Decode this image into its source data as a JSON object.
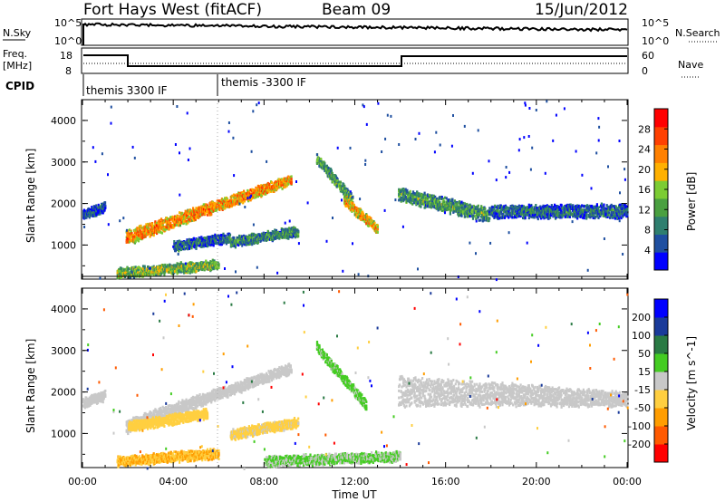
{
  "header": {
    "title": "Fort Hays West (fitACF)",
    "beam": "Beam 09",
    "date": "15/Jun/2012"
  },
  "strip_panels": {
    "nsky_label": "N.Sky",
    "nsearch_label": "N.Search",
    "noise_ticks": [
      "10^5",
      "10^0"
    ],
    "freq_label_line1": "Freq.",
    "freq_label_line2": "[MHz]",
    "freq_ticks": [
      "18",
      "8"
    ],
    "nave_label": "Nave",
    "nave_ticks": [
      "60",
      "0"
    ],
    "cpid_label": "CPID",
    "cpid_modes": [
      {
        "label": "themis 3300 IF",
        "start_hour": 0,
        "end_hour": 6
      },
      {
        "label": "themis -3300 IF",
        "start_hour": 6,
        "end_hour": 24
      }
    ]
  },
  "colors": {
    "power_scale": [
      "#0000ff",
      "#1f4fa0",
      "#2f7f6f",
      "#4aa040",
      "#7ccc33",
      "#ffb000",
      "#ff8000",
      "#ff4000",
      "#ff0000"
    ],
    "velocity_scale": [
      "#ff0000",
      "#ff5a00",
      "#ff9d00",
      "#ffcf40",
      "#c8c8c8",
      "#44cc22",
      "#2a7a44",
      "#1a3a9a",
      "#0000ff"
    ],
    "ground_scatter": "#c8c8c8"
  },
  "chart_data": [
    {
      "type": "heatmap",
      "name_printed": "Power",
      "ylabel": "Slant Range [km]",
      "colorbar_label": "Power [dB]",
      "colorbar_ticks": [
        "28",
        "24",
        "20",
        "16",
        "12",
        "8",
        "4"
      ],
      "colorbar_range": [
        0,
        30
      ],
      "xlim_hours": [
        0,
        24
      ],
      "ylim_km": [
        180,
        4500
      ],
      "yticks": [
        "4000",
        "3000",
        "2000",
        "1000"
      ],
      "echo_bands": [
        {
          "hours": [
            0.0,
            1.0
          ],
          "range_km": [
            1650,
            1850
          ],
          "power_db": 6
        },
        {
          "hours": [
            1.9,
            9.2
          ],
          "range_km_start": [
            1050,
            1350
          ],
          "range_km_end": [
            2500,
            2700
          ],
          "power_db": 22
        },
        {
          "hours": [
            4.0,
            6.5
          ],
          "range_km": [
            900,
            1100
          ],
          "power_db": 8
        },
        {
          "hours": [
            6.5,
            9.5
          ],
          "range_km": [
            1000,
            1250
          ],
          "power_db": 10
        },
        {
          "hours": [
            10.3,
            11.9
          ],
          "range_km": [
            3000,
            2000
          ],
          "power_db": 12
        },
        {
          "hours": [
            11.5,
            13.0
          ],
          "range_km": [
            2000,
            1300
          ],
          "power_db": 20
        },
        {
          "hours": [
            13.9,
            17.9
          ],
          "range_km_start": [
            2100,
            2400
          ],
          "range_km_end": [
            1600,
            1900
          ],
          "power_db": 12
        },
        {
          "hours": [
            17.9,
            24.0
          ],
          "range_km_start": [
            1700,
            1950
          ],
          "range_km_end": [
            1700,
            2000
          ],
          "power_db": 8
        },
        {
          "hours": [
            1.5,
            6.0
          ],
          "range_km": [
            250,
            450
          ],
          "power_db": 14
        }
      ]
    },
    {
      "type": "heatmap",
      "name_printed": "Velocity",
      "ylabel": "Slant Range [km]",
      "colorbar_label": "Velocity [m s^-1]",
      "colorbar_ticks": [
        "200",
        "100",
        "50",
        "15",
        "-15",
        "-50",
        "-100",
        "-200"
      ],
      "colorbar_range": [
        -250,
        250
      ],
      "xlabel": "Time UT",
      "xticks": [
        "00:00",
        "04:00",
        "08:00",
        "12:00",
        "16:00",
        "20:00",
        "00:00"
      ],
      "xlim_hours": [
        0,
        24
      ],
      "ylim_km": [
        180,
        4500
      ],
      "yticks": [
        "4000",
        "3000",
        "2000",
        "1000"
      ],
      "echo_bands": [
        {
          "hours": [
            0.0,
            1.0
          ],
          "range_km": [
            1650,
            1850
          ],
          "velocity": "ground"
        },
        {
          "hours": [
            1.9,
            9.2
          ],
          "range_km_start": [
            1050,
            1350
          ],
          "range_km_end": [
            2500,
            2700
          ],
          "velocity": "ground"
        },
        {
          "hours": [
            2.0,
            5.5
          ],
          "range_km": [
            1100,
            1400
          ],
          "velocity": -60
        },
        {
          "hours": [
            6.5,
            9.5
          ],
          "range_km": [
            900,
            1200
          ],
          "velocity": -40
        },
        {
          "hours": [
            10.3,
            12.5
          ],
          "range_km": [
            3000,
            1600
          ],
          "velocity": 40
        },
        {
          "hours": [
            13.9,
            24.0
          ],
          "range_km_start": [
            1700,
            2400
          ],
          "range_km_end": [
            1700,
            2000
          ],
          "velocity": "ground"
        },
        {
          "hours": [
            1.5,
            6.0
          ],
          "range_km": [
            250,
            450
          ],
          "velocity": -80
        },
        {
          "hours": [
            8.0,
            14.0
          ],
          "range_km": [
            250,
            380
          ],
          "velocity": 30
        }
      ]
    }
  ]
}
